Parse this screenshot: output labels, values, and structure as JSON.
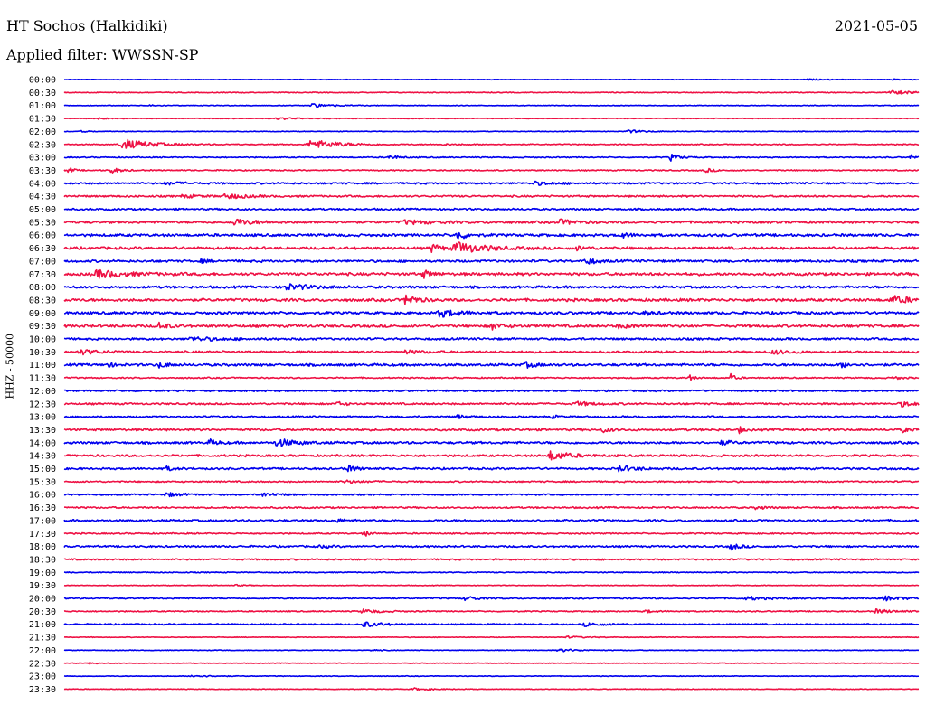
{
  "header": {
    "station": "HT Sochos (Halkidiki)",
    "date": "2021-05-05",
    "filter": "Applied filter: WWSSN-SP"
  },
  "chart_data": {
    "type": "line",
    "title": "HT Sochos (Halkidiki)",
    "subtitle": "Applied filter: WWSSN-SP",
    "date": "2021-05-05",
    "ylabel": "HHZ - 50000",
    "trace_colors": [
      "#0000ee",
      "#ee1144"
    ],
    "rows": [
      {
        "time": "00:00",
        "noise": 0.3,
        "events": [
          [
            0.87,
            0.6,
            0.02
          ],
          [
            0.97,
            0.5,
            0.02
          ]
        ]
      },
      {
        "time": "00:30",
        "noise": 0.5,
        "events": [
          [
            0.97,
            1.8,
            0.03
          ]
        ]
      },
      {
        "time": "01:00",
        "noise": 0.4,
        "events": [
          [
            0.29,
            2.2,
            0.02
          ],
          [
            0.1,
            0.8,
            0.01
          ]
        ]
      },
      {
        "time": "01:30",
        "noise": 0.4,
        "events": [
          [
            0.25,
            1.2,
            0.02
          ],
          [
            0.04,
            0.8,
            0.01
          ]
        ]
      },
      {
        "time": "02:00",
        "noise": 0.4,
        "events": [
          [
            0.66,
            1.5,
            0.02
          ],
          [
            0.02,
            0.7,
            0.01
          ]
        ]
      },
      {
        "time": "02:30",
        "noise": 0.6,
        "events": [
          [
            0.07,
            5.5,
            0.03
          ],
          [
            0.29,
            5.0,
            0.03
          ],
          [
            0.44,
            0.8,
            0.02
          ]
        ]
      },
      {
        "time": "03:00",
        "noise": 0.7,
        "events": [
          [
            0.38,
            2.5,
            0.01
          ],
          [
            0.71,
            3.5,
            0.01
          ],
          [
            0.99,
            3.0,
            0.005
          ]
        ]
      },
      {
        "time": "03:30",
        "noise": 0.7,
        "events": [
          [
            0.005,
            4.0,
            0.005
          ],
          [
            0.055,
            3.0,
            0.01
          ],
          [
            0.75,
            2.2,
            0.01
          ]
        ]
      },
      {
        "time": "04:00",
        "noise": 1.1,
        "events": [
          [
            0.55,
            1.8,
            0.02
          ],
          [
            0.12,
            1.5,
            0.02
          ]
        ]
      },
      {
        "time": "04:30",
        "noise": 1.1,
        "events": [
          [
            0.19,
            2.8,
            0.02
          ],
          [
            0.14,
            1.5,
            0.02
          ]
        ]
      },
      {
        "time": "05:00",
        "noise": 1.1,
        "events": []
      },
      {
        "time": "05:30",
        "noise": 1.4,
        "events": [
          [
            0.2,
            3.5,
            0.02
          ],
          [
            0.4,
            2.0,
            0.03
          ],
          [
            0.58,
            2.5,
            0.02
          ]
        ]
      },
      {
        "time": "06:00",
        "noise": 1.6,
        "events": [
          [
            0.46,
            5.0,
            0.01
          ],
          [
            0.65,
            3.0,
            0.01
          ]
        ]
      },
      {
        "time": "06:30",
        "noise": 1.6,
        "events": [
          [
            0.46,
            6.0,
            0.03
          ],
          [
            0.43,
            4.5,
            0.01
          ],
          [
            0.6,
            2.0,
            0.01
          ]
        ]
      },
      {
        "time": "07:00",
        "noise": 1.4,
        "events": [
          [
            0.61,
            4.0,
            0.01
          ],
          [
            0.16,
            1.5,
            0.01
          ]
        ]
      },
      {
        "time": "07:30",
        "noise": 1.7,
        "events": [
          [
            0.04,
            4.0,
            0.03
          ],
          [
            0.42,
            4.0,
            0.01
          ]
        ]
      },
      {
        "time": "08:00",
        "noise": 1.5,
        "events": [
          [
            0.26,
            3.0,
            0.03
          ]
        ]
      },
      {
        "time": "08:30",
        "noise": 1.7,
        "events": [
          [
            0.4,
            7.0,
            0.01
          ],
          [
            0.97,
            4.0,
            0.02
          ]
        ]
      },
      {
        "time": "09:00",
        "noise": 1.6,
        "events": [
          [
            0.44,
            4.0,
            0.02
          ],
          [
            0.68,
            2.0,
            0.01
          ]
        ]
      },
      {
        "time": "09:30",
        "noise": 1.6,
        "events": [
          [
            0.11,
            4.0,
            0.01
          ],
          [
            0.5,
            4.0,
            0.01
          ],
          [
            0.65,
            2.0,
            0.02
          ]
        ]
      },
      {
        "time": "10:00",
        "noise": 1.3,
        "events": [
          [
            0.15,
            2.0,
            0.03
          ]
        ]
      },
      {
        "time": "10:30",
        "noise": 1.3,
        "events": [
          [
            0.02,
            2.5,
            0.02
          ],
          [
            0.4,
            1.5,
            0.02
          ],
          [
            0.83,
            2.0,
            0.02
          ]
        ]
      },
      {
        "time": "11:00",
        "noise": 1.5,
        "events": [
          [
            0.11,
            3.0,
            0.01
          ],
          [
            0.54,
            3.0,
            0.01
          ],
          [
            0.91,
            2.5,
            0.01
          ],
          [
            0.05,
            4.0,
            0.005
          ]
        ]
      },
      {
        "time": "11:30",
        "noise": 0.8,
        "events": [
          [
            0.73,
            4.0,
            0.005
          ],
          [
            0.78,
            4.0,
            0.005
          ],
          [
            0.97,
            1.5,
            0.01
          ]
        ]
      },
      {
        "time": "12:00",
        "noise": 1.0,
        "events": []
      },
      {
        "time": "12:30",
        "noise": 1.1,
        "events": [
          [
            0.32,
            2.0,
            0.01
          ],
          [
            0.6,
            2.0,
            0.02
          ],
          [
            0.98,
            2.5,
            0.02
          ]
        ]
      },
      {
        "time": "13:00",
        "noise": 1.0,
        "events": [
          [
            0.46,
            2.0,
            0.01
          ],
          [
            0.57,
            1.5,
            0.01
          ]
        ]
      },
      {
        "time": "13:30",
        "noise": 1.3,
        "events": [
          [
            0.63,
            2.5,
            0.01
          ],
          [
            0.79,
            3.5,
            0.005
          ],
          [
            0.98,
            2.5,
            0.01
          ]
        ]
      },
      {
        "time": "14:00",
        "noise": 1.4,
        "events": [
          [
            0.25,
            4.0,
            0.02
          ],
          [
            0.17,
            3.0,
            0.01
          ],
          [
            0.77,
            2.5,
            0.01
          ]
        ]
      },
      {
        "time": "14:30",
        "noise": 1.3,
        "events": [
          [
            0.57,
            5.0,
            0.02
          ]
        ]
      },
      {
        "time": "15:00",
        "noise": 1.2,
        "events": [
          [
            0.33,
            4.0,
            0.01
          ],
          [
            0.65,
            3.0,
            0.02
          ],
          [
            0.12,
            2.0,
            0.01
          ]
        ]
      },
      {
        "time": "15:30",
        "noise": 0.9,
        "events": [
          [
            0.33,
            1.5,
            0.02
          ]
        ]
      },
      {
        "time": "16:00",
        "noise": 0.9,
        "events": [
          [
            0.12,
            2.0,
            0.02
          ],
          [
            0.23,
            2.0,
            0.02
          ]
        ]
      },
      {
        "time": "16:30",
        "noise": 1.0,
        "events": [
          [
            0.81,
            2.0,
            0.01
          ]
        ]
      },
      {
        "time": "17:00",
        "noise": 1.2,
        "events": [
          [
            0.32,
            1.5,
            0.01
          ]
        ]
      },
      {
        "time": "17:30",
        "noise": 0.8,
        "events": [
          [
            0.35,
            5.0,
            0.005
          ]
        ]
      },
      {
        "time": "18:00",
        "noise": 1.1,
        "events": [
          [
            0.78,
            3.5,
            0.01
          ],
          [
            0.3,
            1.5,
            0.01
          ]
        ]
      },
      {
        "time": "18:30",
        "noise": 0.9,
        "events": []
      },
      {
        "time": "19:00",
        "noise": 0.6,
        "events": []
      },
      {
        "time": "19:30",
        "noise": 0.4,
        "events": [
          [
            0.2,
            0.8,
            0.01
          ]
        ]
      },
      {
        "time": "20:00",
        "noise": 0.8,
        "events": [
          [
            0.47,
            3.0,
            0.01
          ],
          [
            0.8,
            2.0,
            0.02
          ],
          [
            0.96,
            2.5,
            0.02
          ]
        ]
      },
      {
        "time": "20:30",
        "noise": 0.7,
        "events": [
          [
            0.35,
            2.0,
            0.02
          ],
          [
            0.95,
            2.0,
            0.02
          ],
          [
            0.68,
            1.5,
            0.01
          ]
        ]
      },
      {
        "time": "21:00",
        "noise": 0.8,
        "events": [
          [
            0.35,
            3.0,
            0.02
          ],
          [
            0.61,
            2.0,
            0.02
          ]
        ]
      },
      {
        "time": "21:30",
        "noise": 0.4,
        "events": [
          [
            0.59,
            1.0,
            0.02
          ]
        ]
      },
      {
        "time": "22:00",
        "noise": 0.4,
        "events": [
          [
            0.58,
            1.5,
            0.02
          ],
          [
            0.36,
            0.8,
            0.01
          ]
        ]
      },
      {
        "time": "22:30",
        "noise": 0.4,
        "events": [
          [
            0.03,
            0.8,
            0.01
          ]
        ]
      },
      {
        "time": "23:00",
        "noise": 0.4,
        "events": [
          [
            0.15,
            1.2,
            0.02
          ]
        ]
      },
      {
        "time": "23:30",
        "noise": 0.4,
        "events": [
          [
            0.41,
            1.2,
            0.02
          ]
        ]
      }
    ]
  }
}
